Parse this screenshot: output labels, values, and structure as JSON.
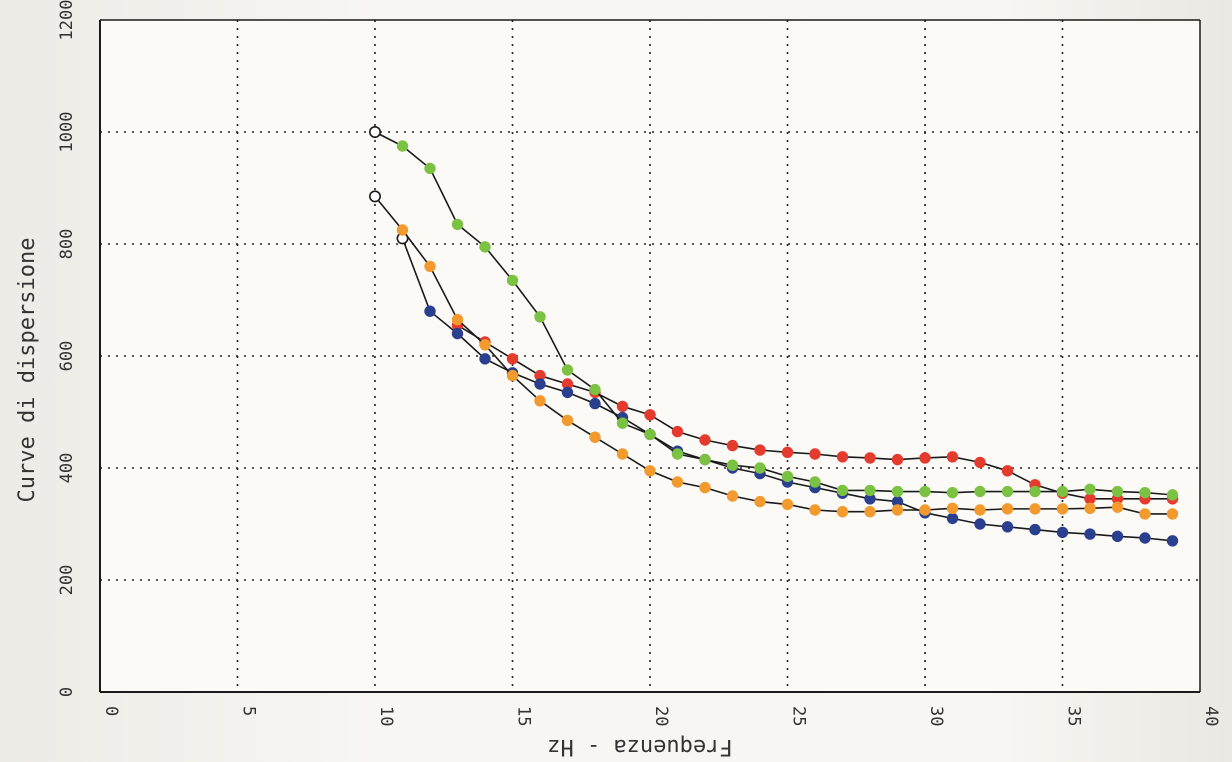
{
  "chart_data": {
    "type": "line",
    "xlabel": "Frequenza - Hz",
    "ylabel": "Curve di dispersione",
    "xlim": [
      0,
      40
    ],
    "ylim": [
      0,
      1200
    ],
    "x_ticks": [
      "0",
      "5",
      "10",
      "15",
      "20",
      "25",
      "30",
      "35",
      "40"
    ],
    "y_ticks": [
      "0",
      "200",
      "400",
      "600",
      "800",
      "1000",
      "1200"
    ],
    "grid": true,
    "series": [
      {
        "color": "#e53a2e",
        "marker": "filled",
        "x": [
          13,
          14,
          15,
          16,
          17,
          18,
          19,
          20,
          21,
          22,
          23,
          24,
          25,
          26,
          27,
          28,
          29,
          30,
          31,
          32,
          33,
          34,
          35,
          36,
          37,
          38,
          39
        ],
        "y": [
          655,
          625,
          595,
          565,
          550,
          535,
          510,
          495,
          465,
          450,
          440,
          432,
          428,
          425,
          420,
          418,
          415,
          418,
          420,
          410,
          395,
          370,
          355,
          345,
          345,
          345,
          345
        ]
      },
      {
        "color": "#2b3f8f",
        "marker": "filled",
        "x": [
          11,
          12,
          13,
          14,
          15,
          16,
          17,
          18,
          19,
          20,
          21,
          22,
          23,
          24,
          25,
          26,
          27,
          28,
          29,
          30,
          31,
          32,
          33,
          34,
          35,
          36,
          37,
          38,
          39
        ],
        "y": [
          810,
          680,
          640,
          595,
          570,
          550,
          535,
          515,
          490,
          460,
          430,
          415,
          400,
          390,
          375,
          365,
          355,
          345,
          340,
          320,
          310,
          300,
          295,
          290,
          285,
          282,
          278,
          275,
          270
        ]
      },
      {
        "color": "#7cc242",
        "marker": "filled",
        "x": [
          10,
          11,
          12,
          13,
          14,
          15,
          16,
          17,
          18,
          19,
          20,
          21,
          22,
          23,
          24,
          25,
          26,
          27,
          28,
          29,
          30,
          31,
          32,
          33,
          34,
          35,
          36,
          37,
          38,
          39
        ],
        "y": [
          1000,
          975,
          935,
          835,
          795,
          735,
          670,
          575,
          540,
          480,
          460,
          425,
          415,
          405,
          400,
          385,
          375,
          360,
          360,
          358,
          358,
          356,
          358,
          358,
          358,
          358,
          362,
          358,
          356,
          352
        ]
      },
      {
        "color": "#f29a2e",
        "marker": "filled",
        "x": [
          10,
          11,
          12,
          13,
          14,
          15,
          16,
          17,
          18,
          19,
          20,
          21,
          22,
          23,
          24,
          25,
          26,
          27,
          28,
          29,
          30,
          31,
          32,
          33,
          34,
          35,
          36,
          37,
          38,
          39
        ],
        "y": [
          885,
          825,
          760,
          665,
          620,
          565,
          520,
          485,
          455,
          425,
          395,
          375,
          365,
          350,
          340,
          335,
          325,
          322,
          322,
          325,
          325,
          328,
          325,
          327,
          327,
          327,
          328,
          330,
          318,
          318
        ]
      }
    ]
  }
}
